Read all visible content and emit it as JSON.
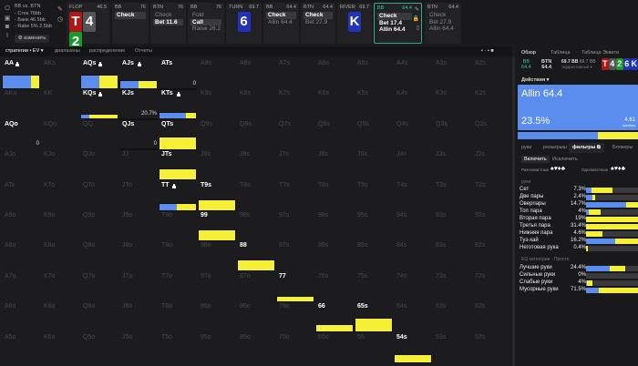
{
  "sidebar_icons": [
    "power-icon",
    "save-icon",
    "gamepad-icon",
    "text-cursor-icon"
  ],
  "info": {
    "title": "BB vs. BTN",
    "lines": [
      "- Стек 76bb",
      "- Банк 46.5bb",
      "- Rake 5% 2.5bb"
    ],
    "change": "изменить"
  },
  "flop": {
    "label": "FLOP",
    "pot": "46.5",
    "cards": [
      {
        "r": "T",
        "c": "#b01818"
      },
      {
        "r": "4",
        "c": "#555558"
      },
      {
        "r": "2",
        "c": "#1a9a2a"
      }
    ]
  },
  "turn": {
    "label": "TURN",
    "pot": "69.7",
    "card": {
      "r": "6",
      "c": "#2233bb"
    }
  },
  "river": {
    "label": "RIVER",
    "pot": "69.7",
    "card": {
      "r": "K",
      "c": "#2233bb"
    }
  },
  "columns": [
    {
      "pos": "BB",
      "pot": "76",
      "actions": [
        "Check"
      ],
      "sel": 0
    },
    {
      "pos": "BTN",
      "pot": "76",
      "actions": [
        "Check",
        "Bet 11.6"
      ],
      "sel": 1
    },
    {
      "pos": "BB",
      "pot": "76",
      "actions": [
        "Fold",
        "Call",
        "Raise 26.2"
      ],
      "sel": 1
    },
    {
      "pos": "BB",
      "pot": "64.4",
      "actions": [
        "Check",
        "Allin 64.4"
      ],
      "sel": 0
    },
    {
      "pos": "BTN",
      "pot": "64.4",
      "actions": [
        "Check",
        "Bet 27.9"
      ],
      "sel": 0
    },
    {
      "pos": "BB",
      "pot": "64.4",
      "actions": [
        "Check",
        "Bet 17.4",
        "Allin 64.4"
      ],
      "sel": 0,
      "current": true
    },
    {
      "pos": "BTN",
      "pot": "64.4",
      "actions": [
        "Check",
        "Bet 27.9",
        "Allin 64.4"
      ],
      "sel": -1
    }
  ],
  "tabs": [
    "стратегии • EV ▾",
    "диапазоны",
    "распределение",
    "Отчеты"
  ],
  "grid": {
    "rows": [
      "AA AKs AQs AJs ATs A9s A8s A7s A6s A5s A4s A3s A2s",
      "AKo KK KQs KJs KTs K9s K8s K7s K6s K5s K4s K3s K2s",
      "AQo KQo QQ QJs QTs Q9s Q8s Q7s Q6s Q5s Q4s Q3s Q2s",
      "AJo KJo QJo JJ JTs J9s J8s J7s J6s J5s J4s J3s J2s",
      "ATo KTo QTo JTo TT T9s T8s T7s T6s T5s T4s T3s T2s",
      "A9o K9o Q9o J9o T9o 99 98s 97s 96s 95s 94s 93s 92s",
      "A8o K8o Q8o J8o T8o 98o 88 87s 86s 85s 84s 83s 82s",
      "A7o K7o Q7o J7o T7o 97o 87o 77 76s 75s 74s 73s 72s",
      "A6o K6o Q6o J6o T6o 96o 86o 76o 66 65s 64s 63s 62s",
      "A5o K5o Q5o J5o T5o 95o 85o 75o 65o 55 54s 53s 52s"
    ],
    "active": {
      "AA": {
        "blue": 0.78,
        "weight": 1,
        "lock": true
      },
      "AQs": {
        "blue": 0.5,
        "weight": 1,
        "lock": true
      },
      "AJs": {
        "blue": 0.5,
        "weight": 0.65,
        "lock": true
      },
      "ATs": {
        "blue": 0,
        "weight": 0.05,
        "value": "0"
      },
      "KQs": {
        "blue": 0.23,
        "weight": 0.4,
        "lock": true
      },
      "KJs": {
        "blue": 0,
        "weight": 0.1,
        "value": "20.7%"
      },
      "KTs": {
        "blue": 0.72,
        "weight": 0.5,
        "lock": true
      },
      "AQo": {
        "blue": 0,
        "weight": 0,
        "value": "0"
      },
      "QJs": {
        "blue": 0,
        "weight": 0.05,
        "value": "0"
      },
      "QTs": {
        "blue": 0,
        "weight": 0.95
      },
      "JTs": {
        "blue": 0,
        "weight": 0.8
      },
      "TT": {
        "blue": 0.48,
        "weight": 0.55,
        "lock": true
      },
      "T9s": {
        "blue": 0,
        "weight": 0.8
      },
      "99": {
        "blue": 0,
        "weight": 0.8
      },
      "88": {
        "blue": 0,
        "weight": 0.85
      },
      "77": {
        "blue": 0,
        "weight": 0.45
      },
      "66": {
        "blue": 0,
        "weight": 0.55
      },
      "65s": {
        "blue": 0,
        "weight": 1
      },
      "54s": {
        "blue": 0,
        "weight": 0.6
      }
    }
  },
  "right": {
    "tabs": [
      "Обзор",
      "Таблица",
      "Таблица Эквити"
    ],
    "bb": "BB",
    "bb_val": "64.4",
    "btn": "BTN",
    "btn_val": "64.4",
    "stack1": "69.7 BB",
    "stack2": "69.7 BB",
    "sub": "Эффективный ▾",
    "board": [
      {
        "r": "T",
        "c": "#b01818"
      },
      {
        "r": "4",
        "c": "#555558"
      },
      {
        "r": "2",
        "c": "#1a9a2a"
      },
      {
        "r": "6",
        "c": "#2233bb"
      },
      {
        "r": "K",
        "c": "#2233bb"
      }
    ],
    "actions_label": "Действия ▾",
    "action": {
      "name": "Allin 64.4",
      "freq": "23.5%",
      "ev": "4.61",
      "ev_label": "combos",
      "color": "#5b8def"
    },
    "freq_bar": {
      "blue": 0.67,
      "yellow": 0.33
    },
    "subtabs": [
      "руки",
      "розыгрыш",
      "фильтры ⧉",
      "Блокеры"
    ],
    "incl": "Включить",
    "excl": "Исключить",
    "offsuit": "Разномастные",
    "suited": "Одномастные",
    "suits": "♠♥♦♣",
    "hands_title": "руки",
    "hands": [
      {
        "l": "Сет",
        "p": "7.3%",
        "b": 0.1,
        "y": 0.37
      },
      {
        "l": "Две пары",
        "p": "2.4%",
        "b": 0.11,
        "y": 0.05
      },
      {
        "l": "Оверпары",
        "p": "14.7%",
        "b": 0.72,
        "y": 0.25
      },
      {
        "l": "Топ пара",
        "p": "4%",
        "b": 0.05,
        "y": 0.22
      },
      {
        "l": "Вторая пара",
        "p": "19%",
        "b": 0,
        "y": 1
      },
      {
        "l": "Третья пара",
        "p": "31.4%",
        "b": 0,
        "y": 1
      },
      {
        "l": "Нижняя пара",
        "p": "4.6%",
        "b": 0,
        "y": 0.3
      },
      {
        "l": "Туз-хай",
        "p": "16.2%",
        "b": 0.52,
        "y": 0.48
      },
      {
        "l": "Неготовая рука",
        "p": "0.4%",
        "b": 0,
        "y": 0.03
      }
    ],
    "eq_title": "EQ категории - Просто",
    "eq": [
      {
        "l": "Лучшие руки",
        "p": "24.4%",
        "b": 0.42,
        "y": 0.28
      },
      {
        "l": "Сильные руки",
        "p": "0%",
        "b": 0,
        "y": 0
      },
      {
        "l": "Слабые руки",
        "p": "4%",
        "b": 0.02,
        "y": 0.1
      },
      {
        "l": "Мусорные руки",
        "p": "71.5%",
        "b": 0.23,
        "y": 0.77
      }
    ]
  }
}
